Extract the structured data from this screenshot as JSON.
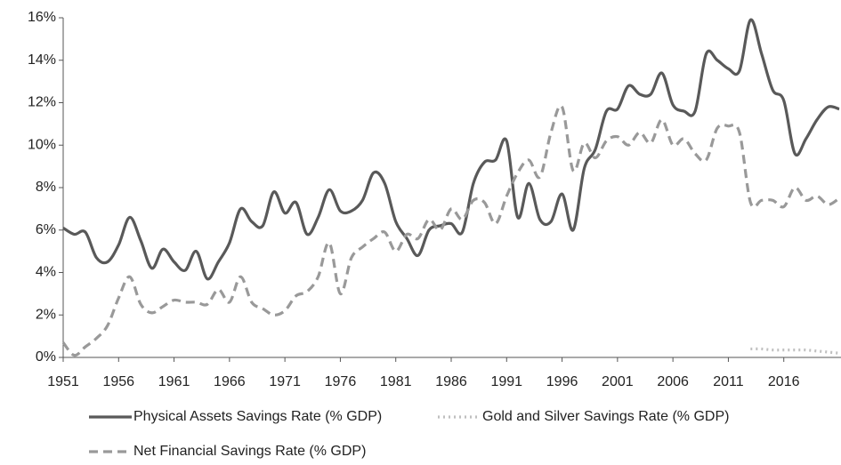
{
  "chart_data": {
    "type": "line",
    "x": [
      1951,
      1952,
      1953,
      1954,
      1955,
      1956,
      1957,
      1958,
      1959,
      1960,
      1961,
      1962,
      1963,
      1964,
      1965,
      1966,
      1967,
      1968,
      1969,
      1970,
      1971,
      1972,
      1973,
      1974,
      1975,
      1976,
      1977,
      1978,
      1979,
      1980,
      1981,
      1982,
      1983,
      1984,
      1985,
      1986,
      1987,
      1988,
      1989,
      1990,
      1991,
      1992,
      1993,
      1994,
      1995,
      1996,
      1997,
      1998,
      1999,
      2000,
      2001,
      2002,
      2003,
      2004,
      2005,
      2006,
      2007,
      2008,
      2009,
      2010,
      2011,
      2012,
      2013,
      2014,
      2015,
      2016,
      2017,
      2018,
      2019,
      2020,
      2021
    ],
    "series": [
      {
        "name": "Physical Assets Savings Rate (% GDP)",
        "color": "#595959",
        "dash": "solid",
        "values": [
          6.1,
          5.8,
          5.9,
          4.7,
          4.5,
          5.3,
          6.6,
          5.5,
          4.2,
          5.1,
          4.5,
          4.1,
          5.0,
          3.7,
          4.5,
          5.4,
          7.0,
          6.4,
          6.2,
          7.8,
          6.8,
          7.3,
          5.8,
          6.6,
          7.9,
          6.9,
          6.9,
          7.4,
          8.7,
          8.2,
          6.4,
          5.6,
          4.8,
          6.0,
          6.2,
          6.3,
          5.9,
          8.2,
          9.2,
          9.3,
          10.2,
          6.6,
          8.2,
          6.5,
          6.4,
          7.7,
          6.0,
          8.9,
          9.8,
          11.6,
          11.7,
          12.8,
          12.4,
          12.4,
          13.4,
          11.9,
          11.6,
          11.6,
          14.3,
          14.0,
          13.6,
          13.5,
          15.9,
          14.3,
          12.6,
          12.1,
          9.6,
          10.3,
          11.2,
          11.8,
          11.7
        ]
      },
      {
        "name": "Gold and Silver Savings Rate (% GDP)",
        "color": "#bfbfbf",
        "dash": "dotted",
        "values": [
          null,
          null,
          null,
          null,
          null,
          null,
          null,
          null,
          null,
          null,
          null,
          null,
          null,
          null,
          null,
          null,
          null,
          null,
          null,
          null,
          null,
          null,
          null,
          null,
          null,
          null,
          null,
          null,
          null,
          null,
          null,
          null,
          null,
          null,
          null,
          null,
          null,
          null,
          null,
          null,
          null,
          null,
          null,
          null,
          null,
          null,
          null,
          null,
          null,
          null,
          null,
          null,
          null,
          null,
          null,
          null,
          null,
          null,
          null,
          null,
          null,
          null,
          0.4,
          0.4,
          0.35,
          0.35,
          0.35,
          0.35,
          0.3,
          0.25,
          0.2
        ]
      },
      {
        "name": "Net Financial Savings Rate (% GDP)",
        "color": "#999999",
        "dash": "dashed",
        "values": [
          0.7,
          0.1,
          0.5,
          0.9,
          1.5,
          2.8,
          3.8,
          2.5,
          2.1,
          2.4,
          2.7,
          2.6,
          2.6,
          2.5,
          3.2,
          2.6,
          3.8,
          2.6,
          2.3,
          2.0,
          2.2,
          2.9,
          3.1,
          3.8,
          5.4,
          3.0,
          4.7,
          5.2,
          5.6,
          5.9,
          5.0,
          5.8,
          5.6,
          6.5,
          6.0,
          7.0,
          6.5,
          7.4,
          7.3,
          6.3,
          7.6,
          8.7,
          9.3,
          8.5,
          10.6,
          11.8,
          8.8,
          10.1,
          9.4,
          10.2,
          10.4,
          10.0,
          10.6,
          10.1,
          11.2,
          10.0,
          10.3,
          9.6,
          9.3,
          10.8,
          10.9,
          10.6,
          7.3,
          7.4,
          7.4,
          7.1,
          8.0,
          7.4,
          7.6,
          7.2,
          7.5
        ]
      }
    ],
    "xlim": [
      1951,
      2021
    ],
    "xticks": [
      1951,
      1956,
      1961,
      1966,
      1971,
      1976,
      1981,
      1986,
      1991,
      1996,
      2001,
      2006,
      2011,
      2016
    ],
    "ylim": [
      0,
      16
    ],
    "yticks": [
      {
        "value": 0,
        "label": "0%"
      },
      {
        "value": 2,
        "label": "2%"
      },
      {
        "value": 4,
        "label": "4%"
      },
      {
        "value": 6,
        "label": "6%"
      },
      {
        "value": 8,
        "label": "8%"
      },
      {
        "value": 10,
        "label": "10%"
      },
      {
        "value": 12,
        "label": "12%"
      },
      {
        "value": 14,
        "label": "14%"
      },
      {
        "value": 16,
        "label": "16%"
      }
    ],
    "grid": false,
    "legend": "bottom"
  }
}
